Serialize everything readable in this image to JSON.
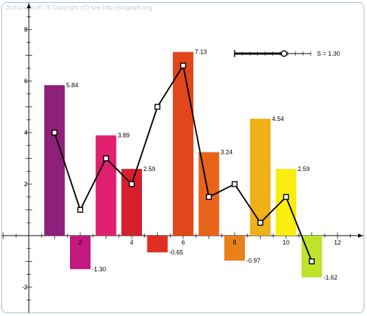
{
  "copyright": "JSXGraph v0.76 Copyright (C) see http://jsxgraph.org",
  "slider": {
    "label": "S = 1.30",
    "value": 1.3,
    "min": 0,
    "max": 2
  },
  "chart_data": {
    "type": "bar",
    "x": [
      1,
      2,
      3,
      4,
      5,
      6,
      7,
      8,
      9,
      10,
      11
    ],
    "values": [
      5.84,
      -1.3,
      3.89,
      2.59,
      -0.65,
      7.13,
      3.24,
      -0.97,
      4.54,
      2.59,
      -1.62
    ],
    "value_labels": [
      "5.84",
      "-1.30",
      "3.89",
      "2.59",
      "-0.65",
      "7.13",
      "3.24",
      "-0.97",
      "4.54",
      "2.59",
      "-1.62"
    ],
    "colors": [
      "#8e1f7a",
      "#c2187f",
      "#e01f6e",
      "#d6202d",
      "#e02e22",
      "#e2471c",
      "#e8641a",
      "#e98018",
      "#f0b01a",
      "#f8ed0c",
      "#bfe22a"
    ],
    "line_series": {
      "x": [
        1,
        2,
        3,
        4,
        5,
        6,
        7,
        8,
        9,
        10,
        11
      ],
      "y": [
        4.0,
        1.0,
        3.0,
        2.0,
        5.0,
        6.6,
        1.5,
        2.0,
        0.5,
        1.5,
        -1.0
      ]
    },
    "xlim": [
      -1,
      12.3
    ],
    "ylim": [
      -3,
      8.5
    ],
    "x_ticks": [
      "2",
      "4",
      "6",
      "8",
      "10",
      "12"
    ],
    "y_ticks": [
      "8",
      "6",
      "4",
      "2",
      "-2"
    ],
    "grid": false,
    "legend": "none"
  }
}
